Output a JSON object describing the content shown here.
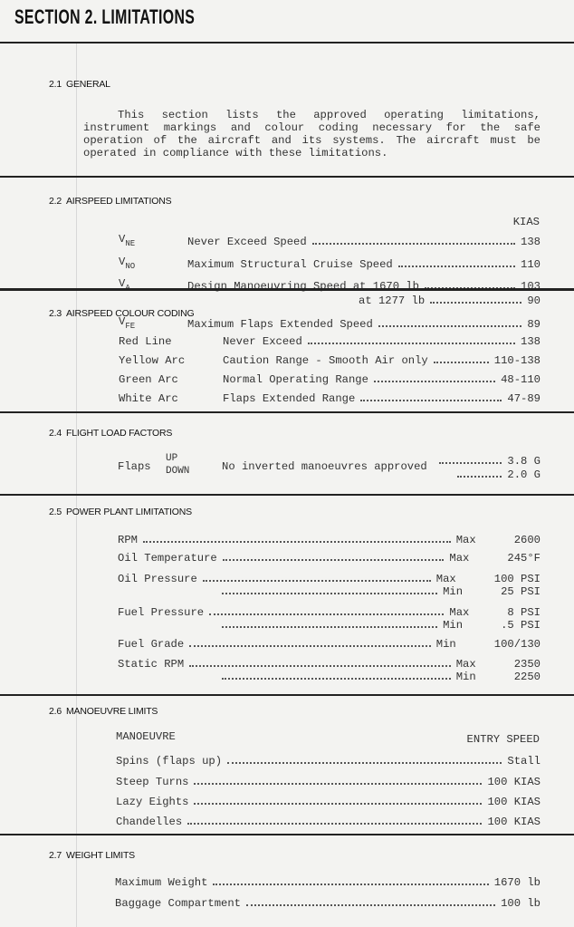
{
  "title": "SECTION 2.  LIMITATIONS",
  "s21": {
    "num": "2.1",
    "title": "GENERAL",
    "text": "This section lists the approved operating limitations, instrument markings and colour coding necessary for the safe operation of the aircraft and its systems.  The aircraft must be operated in compliance with these limitations."
  },
  "s22": {
    "num": "2.2",
    "title": "AIRSPEED LIMITATIONS",
    "unit": "KIAS",
    "rows": [
      {
        "sym": "V",
        "sub": "NE",
        "desc": "Never Exceed Speed",
        "val": "138"
      },
      {
        "sym": "V",
        "sub": "NO",
        "desc": "Maximum Structural Cruise Speed",
        "val": "110"
      },
      {
        "sym": "V",
        "sub": "A",
        "desc": "Design Manoeuvring Speed at 1670 lb",
        "val": "103"
      },
      {
        "desc": "at 1277 lb",
        "val": "90"
      },
      {
        "sym": "V",
        "sub": "FE",
        "desc": "Maximum Flaps Extended Speed",
        "val": "89"
      }
    ]
  },
  "s23": {
    "num": "2.3",
    "title": "AIRSPEED COLOUR CODING",
    "rows": [
      {
        "mark": "Red Line",
        "desc": "Never Exceed",
        "val": "138"
      },
      {
        "mark": "Yellow Arc",
        "desc": "Caution Range - Smooth Air only",
        "val": "110-138"
      },
      {
        "mark": "Green Arc",
        "desc": "Normal Operating Range",
        "val": "48-110"
      },
      {
        "mark": "White Arc",
        "desc": "Flaps Extended Range",
        "val": "47-89"
      }
    ]
  },
  "s24": {
    "num": "2.4",
    "title": "FLIGHT LOAD FACTORS",
    "label": "Flaps",
    "up": "UP",
    "down": "DOWN",
    "desc": "No inverted manoeuvres approved",
    "up_val": "3.8 G",
    "down_val": "2.0 G"
  },
  "s25": {
    "num": "2.5",
    "title": "POWER PLANT LIMITATIONS",
    "rows": [
      {
        "item": "RPM",
        "limit": "Max",
        "val": "2600"
      },
      {
        "item": "Oil Temperature",
        "limit": "Max",
        "val": "245°F"
      },
      {
        "item": "Oil Pressure",
        "limit": "Max",
        "val": "100 PSI"
      },
      {
        "limit": "Min",
        "val": "25 PSI"
      },
      {
        "item": "Fuel Pressure",
        "limit": "Max",
        "val": "8 PSI"
      },
      {
        "limit": "Min",
        "val": ".5 PSI"
      },
      {
        "item": "Fuel Grade",
        "limit": "Min",
        "val": "100/130"
      },
      {
        "item": "Static RPM",
        "limit": "Max",
        "val": "2350"
      },
      {
        "limit": "Min",
        "val": "2250"
      }
    ]
  },
  "s26": {
    "num": "2.6",
    "title": "MANOEUVRE LIMITS",
    "col1": "MANOEUVRE",
    "col2": "ENTRY SPEED",
    "rows": [
      {
        "item": "Spins (flaps up)",
        "val": "Stall"
      },
      {
        "item": "Steep Turns",
        "val": "100 KIAS"
      },
      {
        "item": "Lazy Eights",
        "val": "100 KIAS"
      },
      {
        "item": "Chandelles",
        "val": "100 KIAS"
      }
    ]
  },
  "s27": {
    "num": "2.7",
    "title": "WEIGHT LIMITS",
    "rows": [
      {
        "item": "Maximum Weight",
        "val": "1670 lb"
      },
      {
        "item": "Baggage Compartment",
        "val": "100 lb"
      }
    ]
  }
}
